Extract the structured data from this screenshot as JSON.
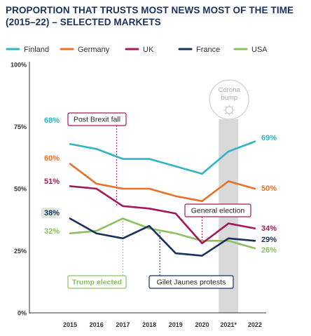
{
  "title": "PROPORTION THAT TRUSTS MOST NEWS MOST OF THE TIME\n(2015–22) – SELECTED MARKETS",
  "chart_data": {
    "type": "line",
    "title": "PROPORTION THAT TRUSTS MOST NEWS MOST OF THE TIME (2015–22) – SELECTED MARKETS",
    "x_categories": [
      "2015",
      "2016",
      "2017",
      "2018",
      "2019",
      "2020",
      "2021*",
      "2022"
    ],
    "ylim": [
      0,
      100
    ],
    "y_ticks": [
      0,
      25,
      50,
      75,
      100
    ],
    "y_tick_labels": [
      "0%",
      "25%",
      "50%",
      "75%",
      "100%"
    ],
    "grid": false,
    "legend_position": "top",
    "series": [
      {
        "name": "Finland",
        "color": "#2fb5c3",
        "values": [
          68,
          66,
          62,
          62,
          59,
          56,
          65,
          69
        ],
        "start_label": "68%",
        "end_label": "69%"
      },
      {
        "name": "Germany",
        "color": "#e8702a",
        "values": [
          60,
          52,
          50,
          50,
          47,
          45,
          53,
          50
        ],
        "start_label": "60%",
        "end_label": "50%"
      },
      {
        "name": "UK",
        "color": "#a3195b",
        "values": [
          51,
          50,
          43,
          42,
          40,
          28,
          36,
          34
        ],
        "start_label": "51%",
        "end_label": "34%"
      },
      {
        "name": "France",
        "color": "#18315e",
        "values": [
          38,
          32,
          30,
          35,
          24,
          23,
          30,
          29
        ],
        "start_label": "38%",
        "end_label": "29%"
      },
      {
        "name": "USA",
        "color": "#8cc063",
        "values": [
          32,
          33,
          38,
          34,
          32,
          29,
          29,
          26
        ],
        "start_label": "32%",
        "end_label": "26%"
      }
    ],
    "highlight_band": {
      "x": "2021*",
      "label": "Corona bump"
    },
    "annotations": [
      {
        "text": "Post Brexit fall",
        "x": "2017",
        "series": "UK",
        "color": "#a3195b"
      },
      {
        "text": "General election",
        "x": "2020",
        "series": "UK",
        "color": "#a3195b"
      },
      {
        "text": "Trump elected",
        "x": "2017",
        "series": "USA",
        "color": "#8cc063"
      },
      {
        "text": "Gilet Jaunes protests",
        "x": "2018",
        "series": "France",
        "color": "#18315e"
      }
    ]
  }
}
